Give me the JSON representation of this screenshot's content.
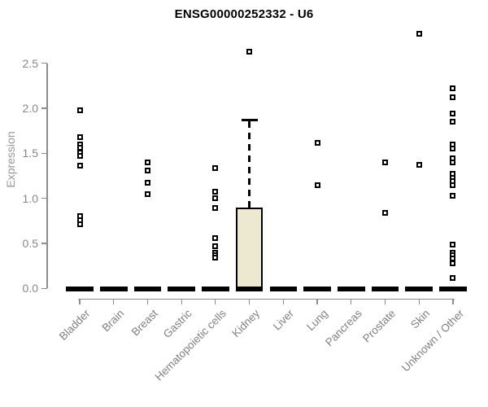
{
  "title": "ENSG00000252332 - U6",
  "chart_data": {
    "type": "boxplot",
    "title": "ENSG00000252332 - U6",
    "ylabel": "Expression",
    "xlabel": "",
    "ylim": [
      0,
      2.9
    ],
    "yticks": [
      0.0,
      0.5,
      1.0,
      1.5,
      2.0,
      2.5
    ],
    "grid": false,
    "legend": "none",
    "categories": [
      "Bladder",
      "Brain",
      "Breast",
      "Gastric",
      "Hematopoietic cells",
      "Kidney",
      "Liver",
      "Lung",
      "Pancreas",
      "Prostate",
      "Skin",
      "Unknown / Other"
    ],
    "boxes": [
      {
        "category": "Bladder",
        "q1": 0,
        "median": 0,
        "q3": 0,
        "whisker_low": 0,
        "whisker_high": 0,
        "outliers": [
          1.98,
          1.68,
          1.6,
          1.56,
          1.51,
          1.47,
          1.36,
          0.8,
          0.76,
          0.71
        ]
      },
      {
        "category": "Brain",
        "q1": 0,
        "median": 0,
        "q3": 0,
        "whisker_low": 0,
        "whisker_high": 0,
        "outliers": []
      },
      {
        "category": "Breast",
        "q1": 0,
        "median": 0,
        "q3": 0,
        "whisker_low": 0,
        "whisker_high": 0,
        "outliers": [
          1.4,
          1.31,
          1.17,
          1.05
        ]
      },
      {
        "category": "Gastric",
        "q1": 0,
        "median": 0,
        "q3": 0,
        "whisker_low": 0,
        "whisker_high": 0,
        "outliers": []
      },
      {
        "category": "Hematopoietic cells",
        "q1": 0,
        "median": 0,
        "q3": 0,
        "whisker_low": 0,
        "whisker_high": 0,
        "outliers": [
          1.34,
          1.07,
          1.0,
          0.89,
          0.56,
          0.47,
          0.4,
          0.37,
          0.34
        ]
      },
      {
        "category": "Kidney",
        "q1": 0,
        "median": 0,
        "q3": 0.9,
        "whisker_low": 0,
        "whisker_high": 1.87,
        "outliers": [
          2.63
        ]
      },
      {
        "category": "Liver",
        "q1": 0,
        "median": 0,
        "q3": 0,
        "whisker_low": 0,
        "whisker_high": 0,
        "outliers": []
      },
      {
        "category": "Lung",
        "q1": 0,
        "median": 0,
        "q3": 0,
        "whisker_low": 0,
        "whisker_high": 0,
        "outliers": [
          1.62,
          1.15
        ]
      },
      {
        "category": "Pancreas",
        "q1": 0,
        "median": 0,
        "q3": 0,
        "whisker_low": 0,
        "whisker_high": 0,
        "outliers": []
      },
      {
        "category": "Prostate",
        "q1": 0,
        "median": 0,
        "q3": 0,
        "whisker_low": 0,
        "whisker_high": 0,
        "outliers": [
          1.4,
          0.84
        ]
      },
      {
        "category": "Skin",
        "q1": 0,
        "median": 0,
        "q3": 0,
        "whisker_low": 0,
        "whisker_high": 0,
        "outliers": [
          2.83,
          1.37
        ]
      },
      {
        "category": "Unknown / Other",
        "q1": 0,
        "median": 0,
        "q3": 0,
        "whisker_low": 0,
        "whisker_high": 0,
        "outliers": [
          2.22,
          2.12,
          1.94,
          1.85,
          1.6,
          1.55,
          1.44,
          1.4,
          1.27,
          1.23,
          1.19,
          1.15,
          1.03,
          0.49,
          0.4,
          0.37,
          0.33,
          0.28,
          0.12
        ]
      }
    ],
    "colors": {
      "box_fill": "#EDE8D0",
      "box_border": "#000000",
      "bar_color": "#000000",
      "point_color": "#000000",
      "axis_color": "#8C8C8C",
      "tick_label_color": "#888888",
      "xlabel_color": "#808080",
      "ylabel_color": "#999999",
      "title_color": "#000000"
    }
  }
}
